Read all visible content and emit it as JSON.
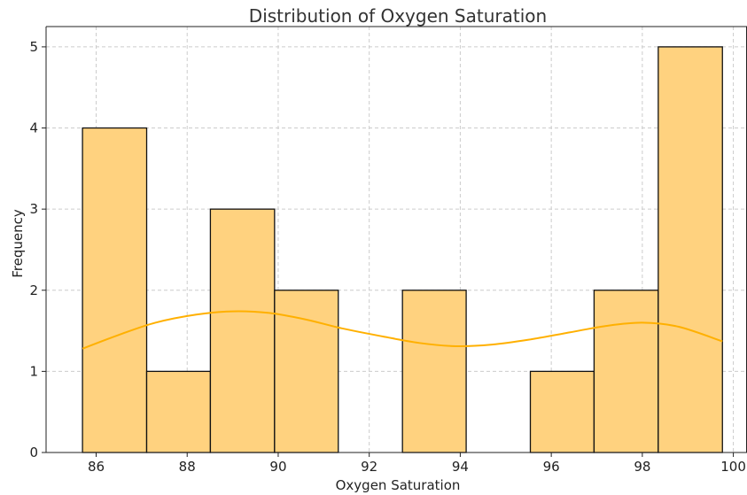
{
  "chart_data": {
    "type": "bar",
    "subtype": "histogram",
    "title": "Distribution of Oxygen Saturation",
    "xlabel": "Oxygen Saturation",
    "ylabel": "Frequency",
    "xlim": [
      84.9,
      100.3
    ],
    "ylim": [
      0,
      5.25
    ],
    "xticks": [
      86,
      88,
      90,
      92,
      94,
      96,
      98,
      100
    ],
    "yticks": [
      0,
      1,
      2,
      3,
      4,
      5
    ],
    "grid": true,
    "bins": [
      {
        "x0": 85.7,
        "x1": 87.11,
        "count": 4
      },
      {
        "x0": 87.11,
        "x2": 0,
        "x1": 88.51,
        "count": 1
      },
      {
        "x0": 88.51,
        "x1": 89.92,
        "count": 3
      },
      {
        "x0": 89.92,
        "x1": 91.32,
        "count": 2
      },
      {
        "x0": 91.32,
        "x1": 92.73,
        "count": 0
      },
      {
        "x0": 92.73,
        "x1": 94.13,
        "count": 2
      },
      {
        "x0": 94.13,
        "x1": 95.54,
        "count": 0
      },
      {
        "x0": 95.54,
        "x1": 96.94,
        "count": 1
      },
      {
        "x0": 96.94,
        "x1": 98.35,
        "count": 2
      },
      {
        "x0": 98.35,
        "x1": 99.76,
        "count": 5
      }
    ],
    "kde_curve": {
      "x": [
        85.7,
        86.5,
        87.3,
        88.2,
        89.0,
        89.8,
        90.6,
        91.4,
        92.3,
        93.1,
        93.9,
        94.7,
        95.5,
        96.4,
        97.2,
        98.0,
        98.8,
        99.76
      ],
      "y": [
        1.28,
        1.45,
        1.6,
        1.7,
        1.74,
        1.72,
        1.64,
        1.53,
        1.43,
        1.35,
        1.31,
        1.33,
        1.39,
        1.48,
        1.56,
        1.6,
        1.55,
        1.37
      ]
    },
    "colors": {
      "bar_fill": "#ffd27f",
      "bar_edge": "#111111",
      "kde_line": "#ffb000"
    }
  }
}
